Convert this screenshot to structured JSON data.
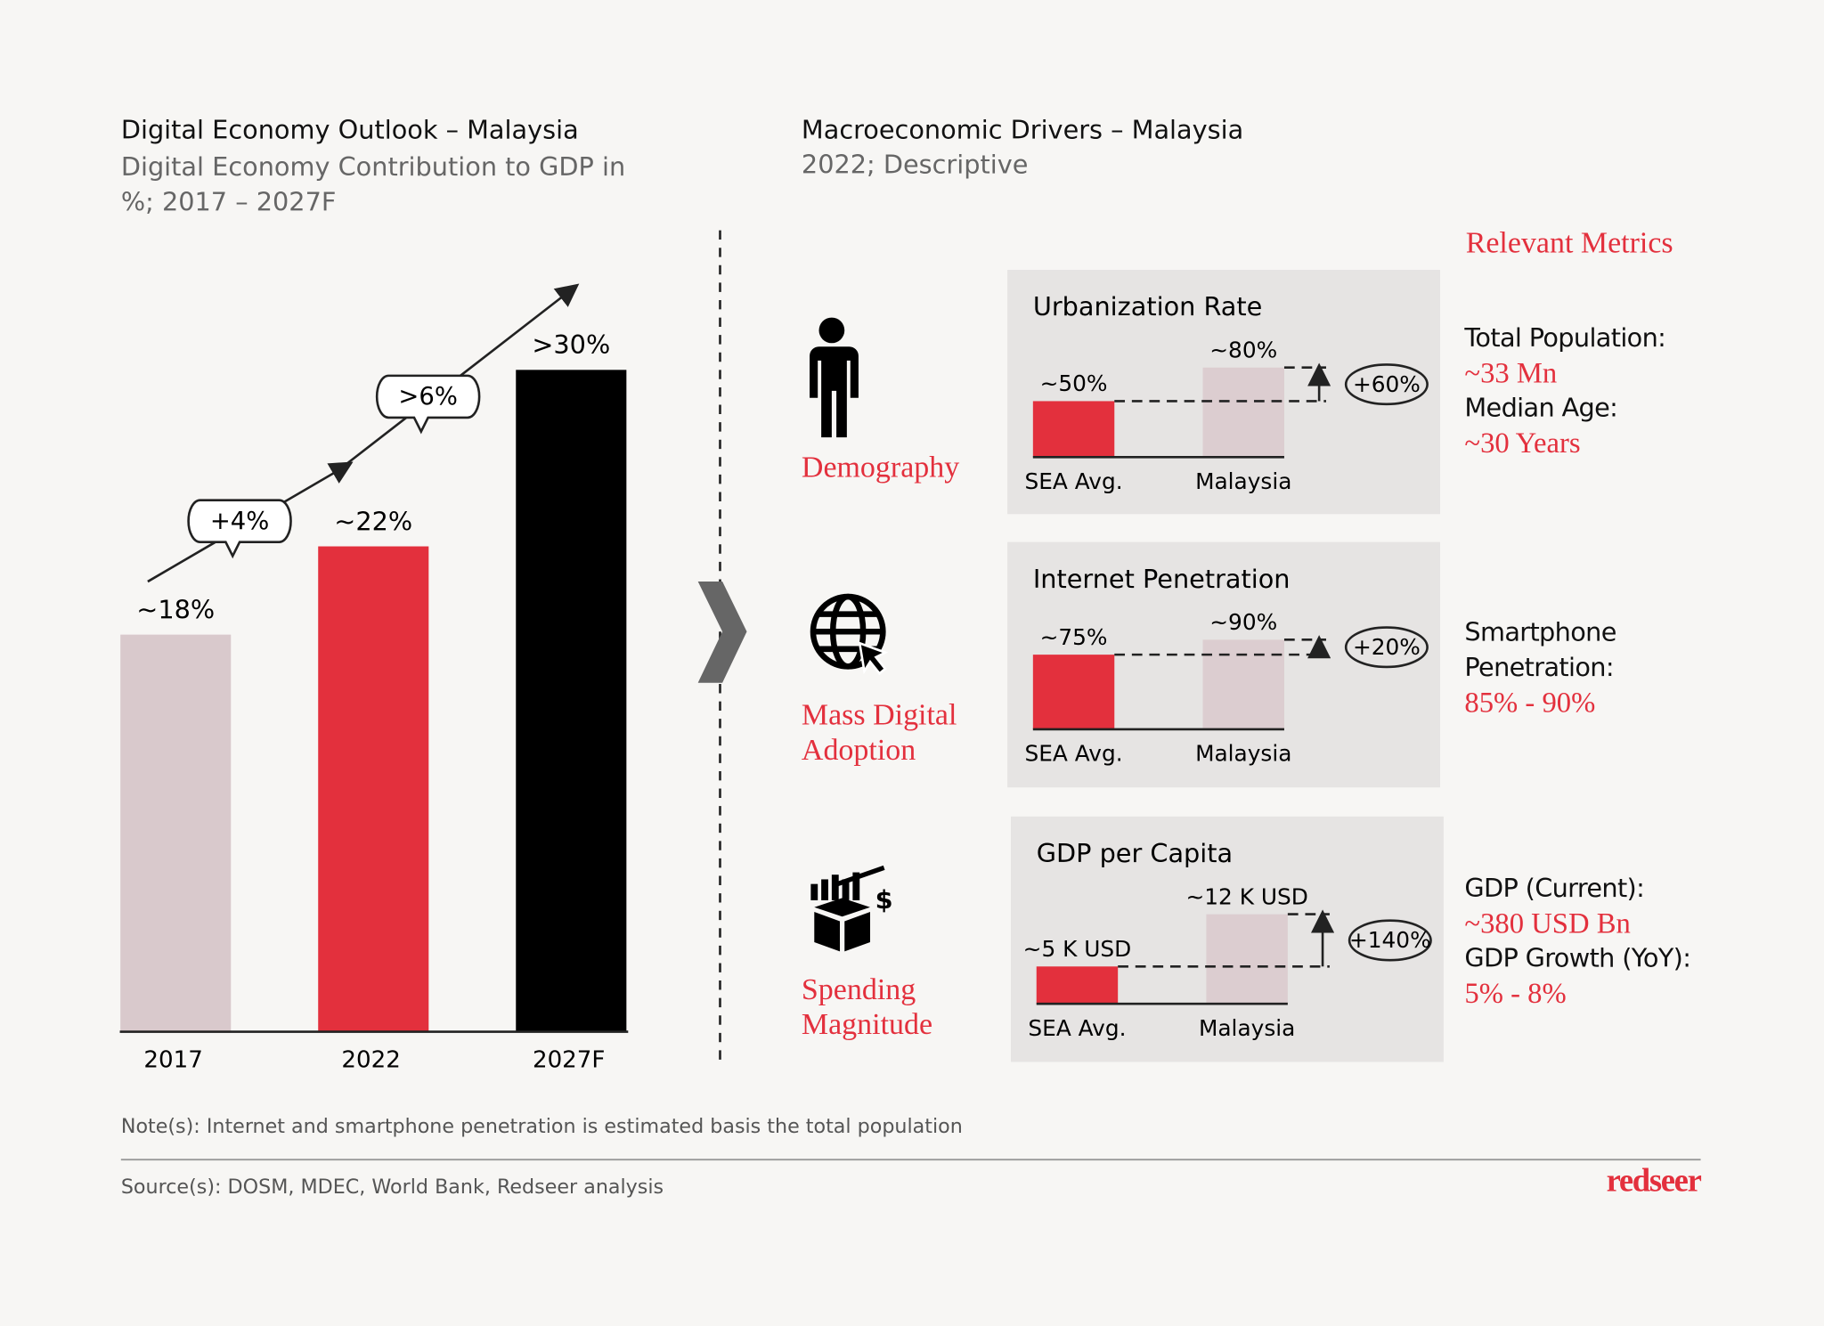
{
  "left_panel": {
    "title": "Digital Economy Outlook – Malaysia",
    "subtitle": "Digital Economy Contribution to GDP in %; 2017 – 2027F"
  },
  "right_panel": {
    "title": "Macroeconomic Drivers – Malaysia",
    "subtitle": "2022; Descriptive",
    "metrics_heading": "Relevant Metrics"
  },
  "drivers": [
    {
      "label": "Demography",
      "metrics": [
        {
          "label": "Total Population:",
          "value": "~33 Mn"
        },
        {
          "label": "Median Age:",
          "value": "~30 Years"
        }
      ]
    },
    {
      "label": "Mass Digital Adoption",
      "metrics": [
        {
          "label": "Smartphone Penetration:",
          "value": "85% - 90%"
        }
      ]
    },
    {
      "label": "Spending Magnitude",
      "metrics": [
        {
          "label": "GDP (Current):",
          "value": "~380 USD Bn"
        },
        {
          "label": "GDP Growth (YoY):",
          "value": "5% - 8%"
        }
      ]
    }
  ],
  "chart_data": [
    {
      "type": "bar",
      "categories": [
        "2017",
        "2022",
        "2027F"
      ],
      "values": [
        18,
        22,
        30
      ],
      "value_labels": [
        "~18%",
        "~22%",
        ">30%"
      ],
      "colors": [
        "#d9c9cc",
        "#e3303d",
        "#000000"
      ],
      "annotations": [
        "+4%",
        ">6%"
      ]
    },
    {
      "type": "bar",
      "title": "Urbanization Rate",
      "categories": [
        "SEA Avg.",
        "Malaysia"
      ],
      "values": [
        50,
        80
      ],
      "value_labels": [
        "~50%",
        "~80%"
      ],
      "colors": [
        "#e3303d",
        "#dccdd0"
      ],
      "annotation": "+60%"
    },
    {
      "type": "bar",
      "title": "Internet Penetration",
      "categories": [
        "SEA Avg.",
        "Malaysia"
      ],
      "values": [
        75,
        90
      ],
      "value_labels": [
        "~75%",
        "~90%"
      ],
      "colors": [
        "#e3303d",
        "#dccdd0"
      ],
      "annotation": "+20%"
    },
    {
      "type": "bar",
      "title": "GDP per Capita",
      "categories": [
        "SEA Avg.",
        "Malaysia"
      ],
      "values": [
        5,
        12
      ],
      "value_labels": [
        "~5 K USD",
        "~12 K USD"
      ],
      "colors": [
        "#e3303d",
        "#dccdd0"
      ],
      "annotation": "+140%"
    }
  ],
  "note": "Note(s): Internet and smartphone penetration is estimated basis the total population",
  "source": "Source(s): DOSM, MDEC, World Bank, Redseer analysis",
  "logo": "redseer"
}
